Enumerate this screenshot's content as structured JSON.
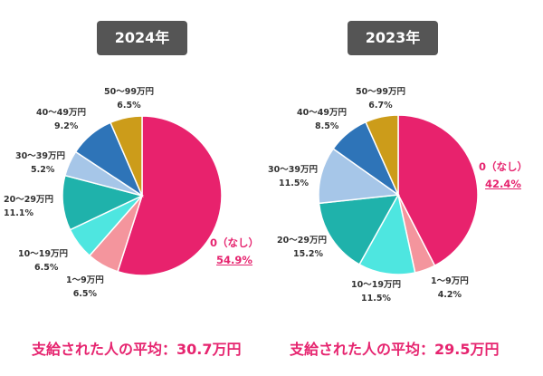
{
  "chart_data": [
    {
      "type": "pie",
      "title": "2024年",
      "categories": [
        "0（なし）",
        "1～9万円",
        "10～19万円",
        "20～29万円",
        "30～39万円",
        "40～49万円",
        "50～99万円"
      ],
      "values": [
        54.9,
        6.5,
        6.5,
        11.1,
        5.2,
        9.2,
        6.5
      ],
      "value_labels": [
        "54.9%",
        "6.5%",
        "6.5%",
        "11.1%",
        "5.2%",
        "9.2%",
        "6.5%"
      ],
      "colors": [
        "#e8226d",
        "#f4959d",
        "#4ee6e0",
        "#1fb2ab",
        "#a6c6e8",
        "#2e74b8",
        "#cc9c1a"
      ],
      "footer": "支給された人の平均：30.7万円"
    },
    {
      "type": "pie",
      "title": "2023年",
      "categories": [
        "0（なし）",
        "1～9万円",
        "10～19万円",
        "20～29万円",
        "30～39万円",
        "40～49万円",
        "50～99万円"
      ],
      "values": [
        42.4,
        4.2,
        11.5,
        15.2,
        11.5,
        8.5,
        6.7
      ],
      "value_labels": [
        "42.4%",
        "4.2%",
        "11.5%",
        "15.2%",
        "11.5%",
        "8.5%",
        "6.7%"
      ],
      "colors": [
        "#e8226d",
        "#f4959d",
        "#4ee6e0",
        "#1fb2ab",
        "#a6c6e8",
        "#2e74b8",
        "#cc9c1a"
      ],
      "footer": "支給された人の平均：29.5万円"
    }
  ]
}
